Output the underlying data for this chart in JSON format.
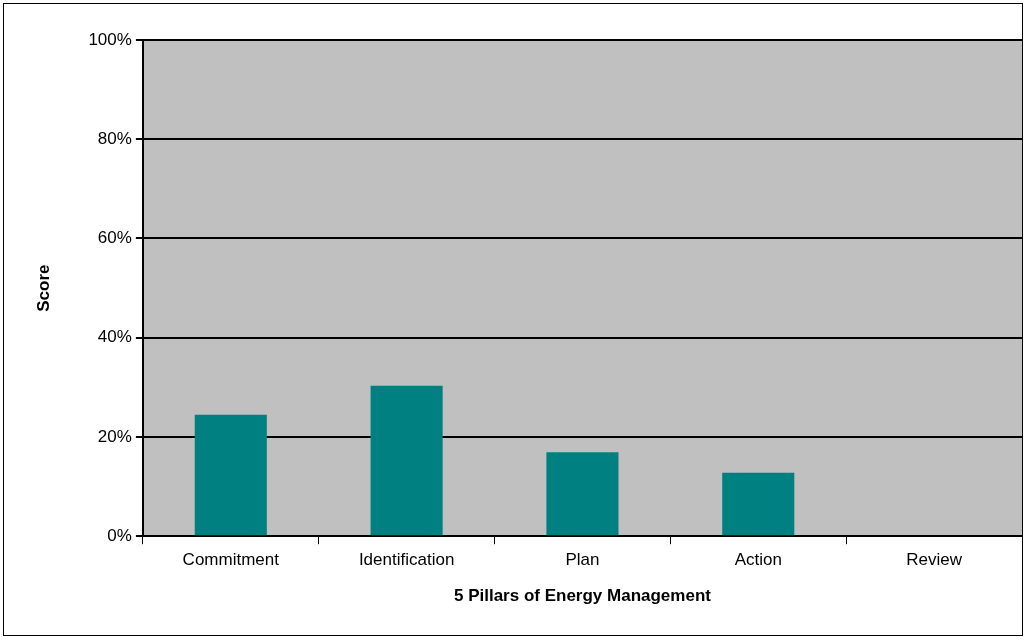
{
  "chart_data": {
    "type": "bar",
    "xlabel": "5 Pillars of Energy Management",
    "ylabel": "Score",
    "categories": [
      "Commitment",
      "Identification",
      "Plan",
      "Action",
      "Review"
    ],
    "values": [
      24.5,
      30.3,
      16.9,
      12.8,
      0
    ],
    "color": "#008080",
    "ylim": [
      0,
      100
    ],
    "yticks": [
      {
        "value": 0,
        "label": "0%"
      },
      {
        "value": 20,
        "label": "20%"
      },
      {
        "value": 40,
        "label": "40%"
      },
      {
        "value": 60,
        "label": "60%"
      },
      {
        "value": 80,
        "label": "80%"
      },
      {
        "value": 100,
        "label": "100%"
      }
    ],
    "grid": "y",
    "legend": false
  }
}
